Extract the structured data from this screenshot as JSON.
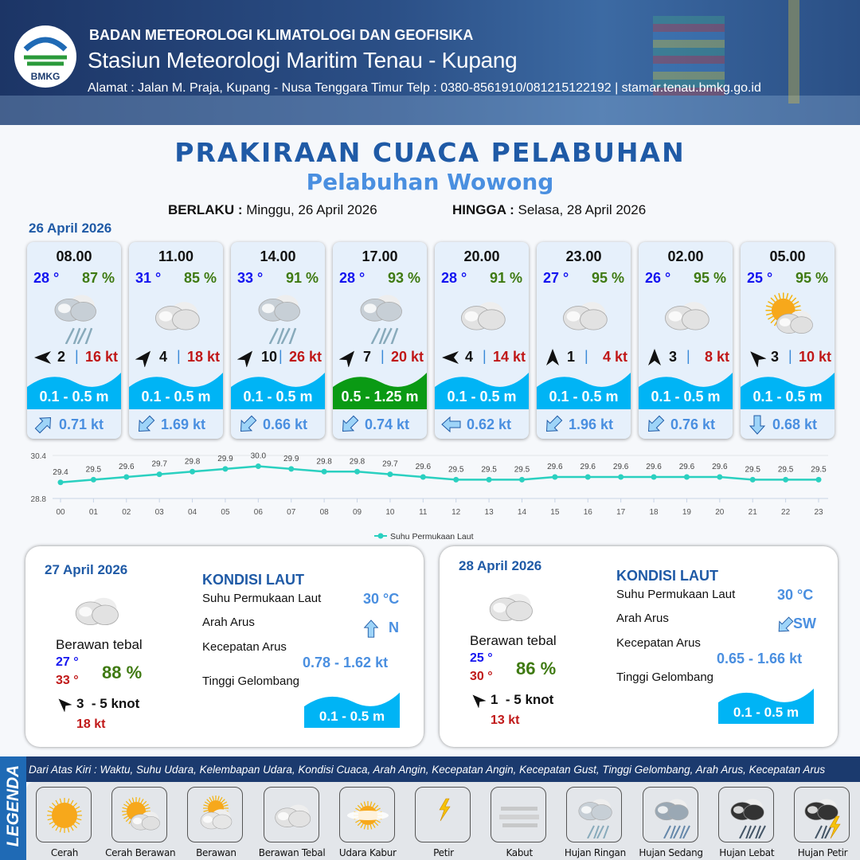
{
  "header": {
    "org": "BADAN METEOROLOGI KLIMATOLOGI DAN GEOFISIKA",
    "station": "Stasiun Meteorologi Maritim Tenau - Kupang",
    "address": "Alamat : Jalan M. Praja, Kupang - Nusa Tenggara Timur Telp : 0380-8561910/081215122192  | stamar.tenau.bmkg.go.id",
    "logo_text": "BMKG"
  },
  "title": "PRAKIRAAN CUACA PELABUHAN",
  "subtitle": "Pelabuhan Wowong",
  "validity": {
    "from_label": "BERLAKU :",
    "from_value": "Minggu, 26 April 2026",
    "to_label": "HINGGA :",
    "to_value": "Selasa, 28 April 2026"
  },
  "day0": "26 April 2026",
  "colors": {
    "wave_low": "#00b4f5",
    "wave_moderate": "#0a9a14",
    "temp": "#1414f0",
    "humidity": "#3f7a12",
    "gust": "#c01818",
    "current": "#4a8fe0",
    "sst_line": "#2ad0c0"
  },
  "cards": [
    {
      "time": "08.00",
      "temp": "28 °",
      "hum": "87 %",
      "icon": "hujan-ringan",
      "wind_dir_deg": 270,
      "wind": "2",
      "gust": "16 kt",
      "wave": "0.1 - 0.5 m",
      "wave_level": "low",
      "cur_dir_deg": 45,
      "current": "0.71 kt"
    },
    {
      "time": "11.00",
      "temp": "31 °",
      "hum": "85 %",
      "icon": "berawan-tebal",
      "wind_dir_deg": 40,
      "wind": "4",
      "gust": "18 kt",
      "wave": "0.1 - 0.5 m",
      "wave_level": "low",
      "cur_dir_deg": 225,
      "current": "1.69 kt"
    },
    {
      "time": "14.00",
      "temp": "33 °",
      "hum": "91 %",
      "icon": "hujan-ringan",
      "wind_dir_deg": 40,
      "wind": "10",
      "gust": "26 kt",
      "wave": "0.1 - 0.5 m",
      "wave_level": "low",
      "cur_dir_deg": 225,
      "current": "0.66 kt"
    },
    {
      "time": "17.00",
      "temp": "28 °",
      "hum": "93 %",
      "icon": "hujan-ringan",
      "wind_dir_deg": 40,
      "wind": "7",
      "gust": "20 kt",
      "wave": "0.5 - 1.25 m",
      "wave_level": "moderate",
      "cur_dir_deg": 225,
      "current": "0.74 kt"
    },
    {
      "time": "20.00",
      "temp": "28 °",
      "hum": "91 %",
      "icon": "berawan-tebal",
      "wind_dir_deg": 270,
      "wind": "4",
      "gust": "14 kt",
      "wave": "0.1 - 0.5 m",
      "wave_level": "low",
      "cur_dir_deg": 270,
      "current": "0.62 kt"
    },
    {
      "time": "23.00",
      "temp": "27 °",
      "hum": "95 %",
      "icon": "berawan-tebal",
      "wind_dir_deg": 0,
      "wind": "1",
      "gust": "4 kt",
      "wave": "0.1 - 0.5 m",
      "wave_level": "low",
      "cur_dir_deg": 225,
      "current": "1.96 kt"
    },
    {
      "time": "02.00",
      "temp": "26 °",
      "hum": "95 %",
      "icon": "berawan-tebal",
      "wind_dir_deg": 0,
      "wind": "3",
      "gust": "8 kt",
      "wave": "0.1 - 0.5 m",
      "wave_level": "low",
      "cur_dir_deg": 225,
      "current": "0.76 kt"
    },
    {
      "time": "05.00",
      "temp": "25 °",
      "hum": "95 %",
      "icon": "cerah-berawan",
      "wind_dir_deg": 315,
      "wind": "3",
      "gust": "10 kt",
      "wave": "0.1 - 0.5 m",
      "wave_level": "low",
      "cur_dir_deg": 180,
      "current": "0.68 kt"
    }
  ],
  "chart_data": {
    "type": "line",
    "x": [
      "00",
      "01",
      "02",
      "03",
      "04",
      "05",
      "06",
      "07",
      "08",
      "09",
      "10",
      "11",
      "12",
      "13",
      "14",
      "15",
      "16",
      "17",
      "18",
      "19",
      "20",
      "21",
      "22",
      "23"
    ],
    "series": [
      {
        "name": "Suhu Permukaan Laut",
        "values": [
          29.4,
          29.5,
          29.6,
          29.7,
          29.8,
          29.9,
          30.0,
          29.9,
          29.8,
          29.8,
          29.7,
          29.6,
          29.5,
          29.5,
          29.5,
          29.6,
          29.6,
          29.6,
          29.6,
          29.6,
          29.6,
          29.5,
          29.5,
          29.5
        ]
      }
    ],
    "ylim": [
      28.8,
      30.4
    ],
    "yticks": [
      "30.4",
      "28.8"
    ],
    "legend": "bottom",
    "grid": true
  },
  "panels": [
    {
      "date": "27 April 2026",
      "condition": "Berawan tebal",
      "icon": "berawan-tebal",
      "tmin": "27 °",
      "tmax": "33 °",
      "hum": "88 %",
      "wind_dir_deg": 315,
      "wind": "3  - 5 knot",
      "gust": "18 kt",
      "kondisi": "KONDISI LAUT",
      "sst_label": "Suhu Permukaan Laut",
      "sst": "30 °C",
      "dir_label": "Arah Arus",
      "cur_dir_deg": 0,
      "cur_dir": "N",
      "speed_label": "Kecepatan Arus",
      "speed": "0.78 - 1.62 kt",
      "wave_label": "Tinggi Gelombang",
      "wave": "0.1 - 0.5 m"
    },
    {
      "date": "28 April 2026",
      "condition": "Berawan tebal",
      "icon": "berawan-tebal",
      "tmin": "25 °",
      "tmax": "30 °",
      "hum": "86 %",
      "wind_dir_deg": 315,
      "wind": "1  - 5 knot",
      "gust": "13 kt",
      "kondisi": "KONDISI LAUT",
      "sst_label": "Suhu Permukaan Laut",
      "sst": "30 °C",
      "dir_label": "Arah Arus",
      "cur_dir_deg": 225,
      "cur_dir": "SW",
      "speed_label": "Kecepatan Arus",
      "speed": "0.65 - 1.66 kt",
      "wave_label": "Tinggi Gelombang",
      "wave": "0.1 - 0.5 m"
    }
  ],
  "legend": {
    "title": "LEGENDA",
    "description": "Dari Atas Kiri : Waktu, Suhu Udara, Kelembapan Udara, Kondisi Cuaca, Arah Angin, Kecepatan Angin, Kecepatan Gust, Tinggi Gelombang, Arah Arus, Kecepatan Arus",
    "items": [
      {
        "label": "Cerah",
        "icon": "cerah"
      },
      {
        "label": "Cerah Berawan",
        "icon": "cerah-berawan"
      },
      {
        "label": "Berawan",
        "icon": "berawan"
      },
      {
        "label": "Berawan Tebal",
        "icon": "berawan-tebal"
      },
      {
        "label": "Udara Kabur",
        "icon": "udara-kabur"
      },
      {
        "label": "Petir",
        "icon": "petir"
      },
      {
        "label": "Kabut",
        "icon": "kabut"
      },
      {
        "label": "Hujan Ringan",
        "icon": "hujan-ringan"
      },
      {
        "label": "Hujan Sedang",
        "icon": "hujan-sedang"
      },
      {
        "label": "Hujan Lebat",
        "icon": "hujan-lebat"
      },
      {
        "label": "Hujan Petir",
        "icon": "hujan-petir"
      }
    ]
  }
}
